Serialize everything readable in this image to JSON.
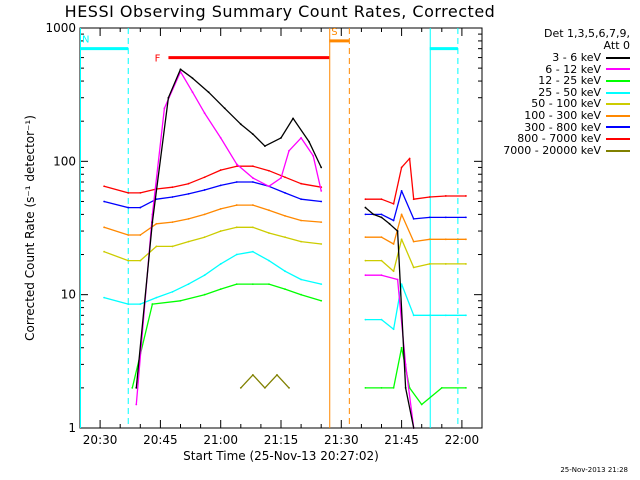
{
  "chart_data": {
    "type": "line",
    "title": "HESSI Observing Summary Count Rates, Corrected",
    "xlabel": "Start Time (25-Nov-13 20:27:02)",
    "ylabel": "Corrected Count Rate (s⁻¹ detector⁻¹)",
    "yscale": "log",
    "ylim": [
      1,
      1000
    ],
    "xlim": [
      "20:25",
      "22:05"
    ],
    "x_ticks": [
      "20:30",
      "20:45",
      "21:00",
      "21:15",
      "21:30",
      "21:45",
      "22:00"
    ],
    "y_ticks": [
      "1",
      "10",
      "100",
      "1000"
    ],
    "legend_header": [
      "Det 1,3,5,6,7,9,",
      "Att 0"
    ],
    "legend_position": "right",
    "series": [
      {
        "name": "3 - 6 keV",
        "color": "#000000",
        "x": [
          "20:39",
          "20:43",
          "20:47",
          "20:50",
          "20:53",
          "20:57",
          "21:01",
          "21:05",
          "21:08",
          "21:11",
          "21:15",
          "21:18",
          "21:22",
          "21:25",
          "21:36",
          "21:38",
          "21:40",
          "21:42",
          "21:44",
          "21:46",
          "21:48"
        ],
        "y": [
          2,
          35,
          300,
          490,
          420,
          330,
          250,
          190,
          160,
          130,
          150,
          210,
          140,
          90,
          45,
          40,
          38,
          34,
          30,
          2,
          1
        ]
      },
      {
        "name": "6 - 12 keV",
        "color": "#ff00ff",
        "x": [
          "20:39",
          "20:43",
          "20:46",
          "20:50",
          "20:53",
          "20:56",
          "21:00",
          "21:04",
          "21:08",
          "21:12",
          "21:15",
          "21:17",
          "21:20",
          "21:23",
          "21:25",
          "21:36",
          "21:40",
          "21:44",
          "21:46",
          "21:48"
        ],
        "y": [
          1.5,
          40,
          250,
          470,
          330,
          230,
          150,
          95,
          75,
          65,
          75,
          120,
          150,
          110,
          60,
          14,
          14,
          13,
          3,
          1
        ]
      },
      {
        "name": "12 - 25 keV",
        "color": "#00ff00",
        "x": [
          "20:38",
          "20:43",
          "20:50",
          "20:56",
          "21:00",
          "21:04",
          "21:08",
          "21:12",
          "21:16",
          "21:20",
          "21:25",
          "21:36",
          "21:40",
          "21:43",
          "21:45",
          "21:47",
          "21:50",
          "21:55",
          "22:01"
        ],
        "y": [
          2,
          8.5,
          9,
          10,
          11,
          12,
          12,
          12,
          11,
          10,
          9,
          2,
          2,
          2,
          4,
          2,
          1.5,
          2,
          2
        ]
      },
      {
        "name": "25 - 50 keV",
        "color": "#00ffff",
        "x": [
          "20:31",
          "20:37",
          "20:40",
          "20:44",
          "20:48",
          "20:52",
          "20:56",
          "21:00",
          "21:04",
          "21:08",
          "21:12",
          "21:16",
          "21:20",
          "21:25",
          "21:36",
          "21:40",
          "21:43",
          "21:45",
          "21:48",
          "21:52",
          "21:56",
          "22:01"
        ],
        "y": [
          9.5,
          8.5,
          8.5,
          9.5,
          10.5,
          12,
          14,
          17,
          20,
          21,
          18,
          15,
          13,
          12,
          6.5,
          6.5,
          5.5,
          12,
          7,
          7,
          7,
          7
        ]
      },
      {
        "name": "50 - 100 keV",
        "color": "#cccc00",
        "x": [
          "20:31",
          "20:37",
          "20:40",
          "20:44",
          "20:48",
          "20:52",
          "20:56",
          "21:00",
          "21:04",
          "21:08",
          "21:12",
          "21:16",
          "21:20",
          "21:25",
          "21:36",
          "21:40",
          "21:43",
          "21:45",
          "21:48",
          "21:52",
          "21:56",
          "22:01"
        ],
        "y": [
          21,
          18,
          18,
          23,
          23,
          25,
          27,
          30,
          32,
          32,
          29,
          27,
          25,
          24,
          18,
          18,
          15,
          26,
          16,
          17,
          17,
          17
        ]
      },
      {
        "name": "100 - 300 keV",
        "color": "#ff8800",
        "x": [
          "20:31",
          "20:37",
          "20:40",
          "20:44",
          "20:48",
          "20:52",
          "20:56",
          "21:00",
          "21:04",
          "21:08",
          "21:12",
          "21:16",
          "21:20",
          "21:25",
          "21:36",
          "21:40",
          "21:43",
          "21:45",
          "21:48",
          "21:52",
          "21:56",
          "22:01"
        ],
        "y": [
          32,
          28,
          28,
          34,
          35,
          37,
          40,
          44,
          47,
          47,
          43,
          39,
          36,
          35,
          27,
          27,
          24,
          40,
          25,
          26,
          26,
          26
        ]
      },
      {
        "name": "300 - 800 keV",
        "color": "#0000ff",
        "x": [
          "20:31",
          "20:37",
          "20:40",
          "20:44",
          "20:48",
          "20:52",
          "20:56",
          "21:00",
          "21:04",
          "21:08",
          "21:12",
          "21:16",
          "21:20",
          "21:25",
          "21:36",
          "21:40",
          "21:43",
          "21:45",
          "21:48",
          "21:52",
          "21:56",
          "22:01"
        ],
        "y": [
          50,
          45,
          45,
          52,
          54,
          57,
          61,
          66,
          70,
          70,
          65,
          58,
          52,
          50,
          40,
          40,
          36,
          60,
          37,
          38,
          38,
          38
        ]
      },
      {
        "name": "800 - 7000 keV",
        "color": "#ff0000",
        "x": [
          "20:31",
          "20:37",
          "20:40",
          "20:44",
          "20:48",
          "20:52",
          "20:56",
          "21:00",
          "21:04",
          "21:08",
          "21:12",
          "21:16",
          "21:20",
          "21:25",
          "21:36",
          "21:40",
          "21:43",
          "21:45",
          "21:47",
          "21:48",
          "21:52",
          "21:56",
          "22:01"
        ],
        "y": [
          65,
          58,
          58,
          62,
          64,
          68,
          76,
          86,
          92,
          92,
          85,
          76,
          68,
          64,
          52,
          52,
          48,
          90,
          105,
          52,
          54,
          55,
          55
        ]
      },
      {
        "name": "7000 - 20000 keV",
        "color": "#808000",
        "x": [
          "21:05",
          "21:08",
          "21:11",
          "21:14",
          "21:17"
        ],
        "y": [
          2,
          2.5,
          2,
          2.5,
          2
        ]
      }
    ],
    "annotations": [
      {
        "text": "F",
        "color": "#ff0000",
        "bar": [
          "20:47",
          "21:27"
        ],
        "level": 600
      },
      {
        "text": "N",
        "color": "#00ffff",
        "bar": [
          "20:25",
          "20:37"
        ],
        "level": 700
      },
      {
        "text": "S",
        "color": "#ff8800",
        "bar": [
          "21:27",
          "21:32"
        ],
        "level": 800
      }
    ]
  },
  "footer": {
    "timestamp": "25-Nov-2013 21:28"
  }
}
